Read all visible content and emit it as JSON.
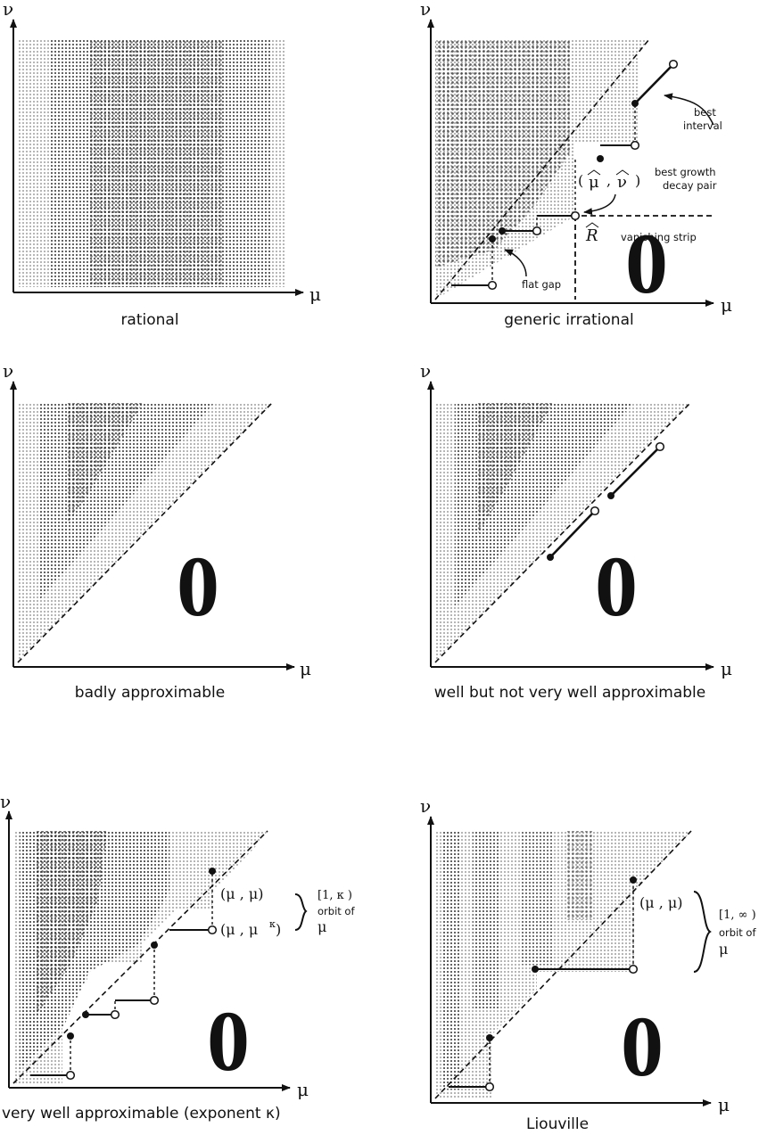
{
  "axis_x": "μ",
  "axis_y": "ν",
  "zero": "0",
  "panels": {
    "rational": {
      "caption": "rational"
    },
    "generic": {
      "caption": "generic irrational",
      "best_interval": [
        "best",
        "interval"
      ],
      "best_pair": [
        "best growth",
        "decay pair"
      ],
      "pair_mu": "μ",
      "pair_nu": "ν",
      "r_hat": "R",
      "vanishing_strip": "vanishing strip",
      "flat_gap": "flat gap"
    },
    "badly": {
      "caption": "badly approximable"
    },
    "well": {
      "caption": "well but not very well approximable"
    },
    "verywell": {
      "caption": "very well approximable (exponent κ)",
      "pt_upper": "(μ , μ)",
      "pt_lower": "(μ , μ",
      "pt_lower_exp": "κ",
      "interval": "[1, κ )",
      "orbit": "orbit of",
      "orbit_mu": "μ"
    },
    "liouville": {
      "caption": "Liouville",
      "pt_upper": "(μ , μ)",
      "interval": "[1, ∞ )",
      "orbit": "orbit of",
      "orbit_mu": "μ"
    }
  }
}
